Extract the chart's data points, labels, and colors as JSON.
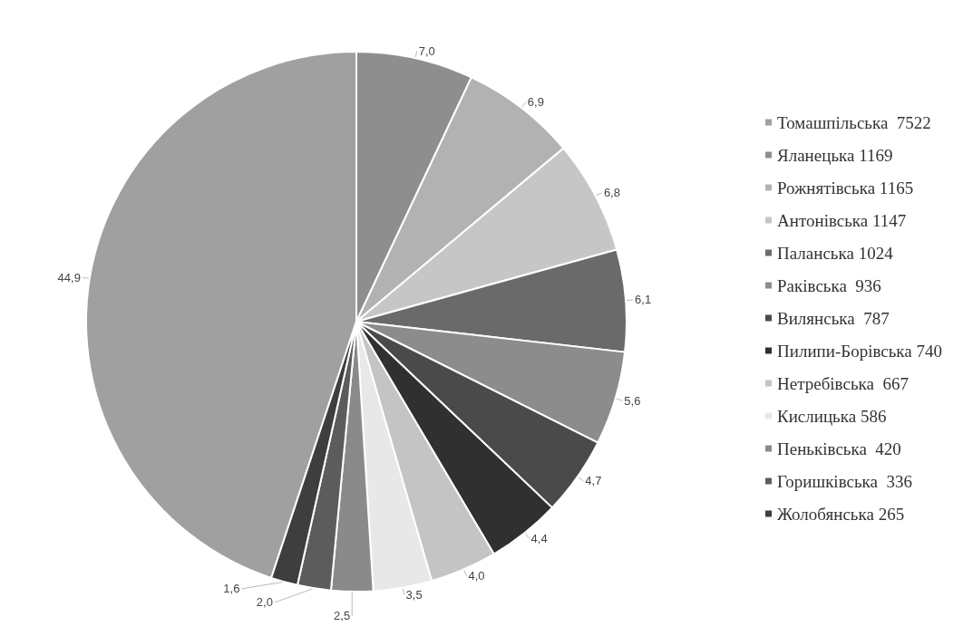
{
  "chart_data": {
    "type": "pie",
    "categories": [
      "Томашпільська  7522",
      "Яланецька 1169",
      "Рожнятівська 1165",
      "Антонівська 1147",
      "Паланська 1024",
      "Раківська  936",
      "Вилянська  787",
      "Пилипи-Борівська 740",
      "Нетребівська  667",
      "Кислицька 586",
      "Пеньківська  420",
      "Горишківська  336",
      "Жолобянська 265"
    ],
    "values": [
      44.9,
      7.0,
      6.9,
      6.8,
      6.1,
      5.6,
      4.7,
      4.4,
      4.0,
      3.5,
      2.5,
      2.0,
      1.6
    ],
    "value_labels": [
      "44,9",
      "7,0",
      "6,9",
      "6,8",
      "6,1",
      "5,6",
      "4,7",
      "4,4",
      "4,0",
      "3,5",
      "2,5",
      "2,0",
      "1,6"
    ],
    "colors": [
      "#a0a0a0",
      "#8e8e8e",
      "#b2b2b2",
      "#c6c6c6",
      "#6a6a6a",
      "#8c8c8c",
      "#4a4a4a",
      "#303030",
      "#c4c4c4",
      "#e8e8e8",
      "#8a8a8a",
      "#5c5c5c",
      "#3e3e3e"
    ],
    "legend": "right"
  }
}
